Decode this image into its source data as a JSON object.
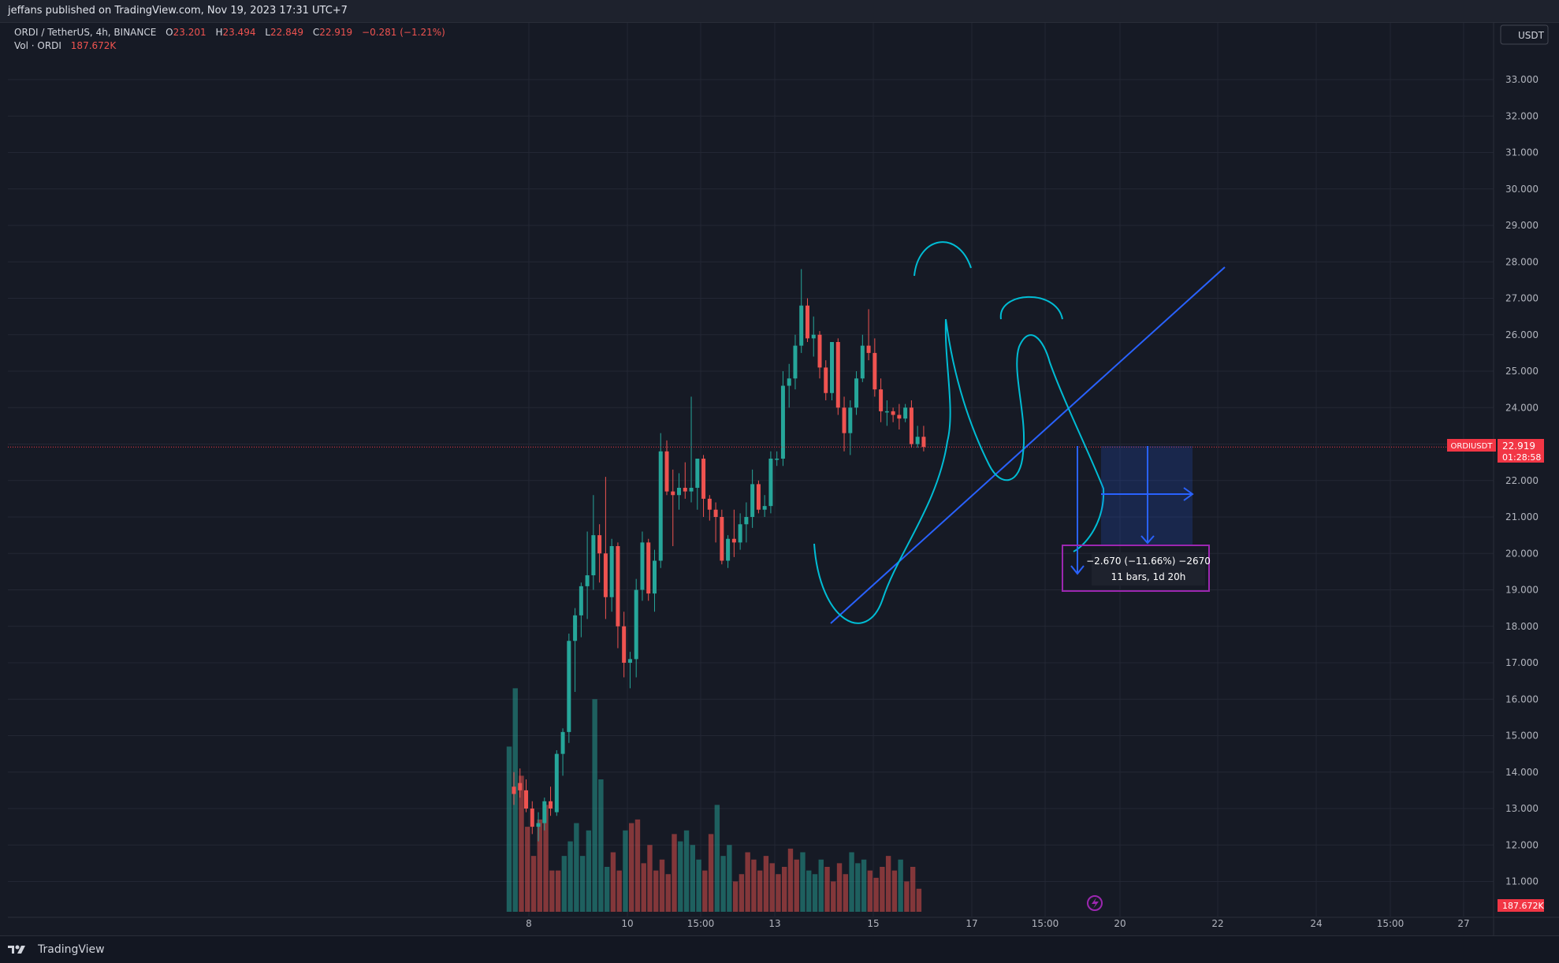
{
  "header": {
    "publish_line": "jeffans published on TradingView.com, Nov 19, 2023 17:31 UTC+7"
  },
  "legend": {
    "symbol": "ORDI / TetherUS, 4h, BINANCE",
    "o_label": "O",
    "o_value": "23.201",
    "h_label": "H",
    "h_value": "23.494",
    "l_label": "L",
    "l_value": "22.849",
    "c_label": "C",
    "c_value": "22.919",
    "change": "−0.281 (−1.21%)",
    "vol_label": "Vol · ORDI",
    "vol_value": "187.672K"
  },
  "currency_button": "USDT",
  "price_tag": {
    "symbol": "ORDIUSDT",
    "price": "22.919",
    "countdown": "01:28:58"
  },
  "volume_tag": "187.672K",
  "measure_box": {
    "line1": "−2.670 (−11.66%) −2670",
    "line2": "11 bars, 1d 20h"
  },
  "footer": {
    "brand": "TradingView"
  },
  "colors": {
    "background": "#161a25",
    "up": "#26a69a",
    "down": "#ef5350",
    "drawing_line": "#2962ff",
    "sketch": "#00bcd4",
    "measure_border": "#9c27b0",
    "price_line": "#f23645"
  },
  "chart_data": {
    "type": "candlestick",
    "symbol": "ORDI / TetherUS",
    "interval": "4h",
    "exchange": "BINANCE",
    "ylim": [
      10.5,
      33.6
    ],
    "y_ticks": [
      "11.000",
      "12.000",
      "13.000",
      "14.000",
      "15.000",
      "16.000",
      "17.000",
      "18.000",
      "19.000",
      "20.000",
      "21.000",
      "22.000",
      "23.000",
      "24.000",
      "25.000",
      "26.000",
      "27.000",
      "28.000",
      "29.000",
      "30.000",
      "31.000",
      "32.000",
      "33.000"
    ],
    "x_ticks": [
      "8",
      "10",
      "15:00",
      "13",
      "15",
      "17",
      "15:00",
      "20",
      "22",
      "24",
      "15:00",
      "27"
    ],
    "last_price": 22.919,
    "candles": [
      [
        13.6,
        14.0,
        13.1,
        13.4
      ],
      [
        13.7,
        14.1,
        13.3,
        13.5
      ],
      [
        13.5,
        13.8,
        12.9,
        13.0
      ],
      [
        13.0,
        13.2,
        12.3,
        12.5
      ],
      [
        12.5,
        12.9,
        12.1,
        12.6
      ],
      [
        12.6,
        13.3,
        12.4,
        13.2
      ],
      [
        13.2,
        13.6,
        12.8,
        13.0
      ],
      [
        12.9,
        14.6,
        12.8,
        14.5
      ],
      [
        14.5,
        15.2,
        13.9,
        15.1
      ],
      [
        15.1,
        17.8,
        14.8,
        17.6
      ],
      [
        17.6,
        18.5,
        16.2,
        18.3
      ],
      [
        18.3,
        19.2,
        17.7,
        19.1
      ],
      [
        19.1,
        20.6,
        18.2,
        19.4
      ],
      [
        19.4,
        21.6,
        19.0,
        20.5
      ],
      [
        20.5,
        20.8,
        19.2,
        20.0
      ],
      [
        20.0,
        22.1,
        18.2,
        18.8
      ],
      [
        18.8,
        20.4,
        18.4,
        20.2
      ],
      [
        20.2,
        20.3,
        17.4,
        18.0
      ],
      [
        18.0,
        18.4,
        16.6,
        17.0
      ],
      [
        17.0,
        17.3,
        16.3,
        17.1
      ],
      [
        17.1,
        19.3,
        16.6,
        19.0
      ],
      [
        19.0,
        20.6,
        18.7,
        20.3
      ],
      [
        20.3,
        20.4,
        18.7,
        18.9
      ],
      [
        18.9,
        20.1,
        18.4,
        19.8
      ],
      [
        19.8,
        23.3,
        19.6,
        22.8
      ],
      [
        22.8,
        23.1,
        21.6,
        21.7
      ],
      [
        21.7,
        22.3,
        20.2,
        21.6
      ],
      [
        21.6,
        22.2,
        21.2,
        21.8
      ],
      [
        21.8,
        22.5,
        21.5,
        21.7
      ],
      [
        21.7,
        24.3,
        21.4,
        21.8
      ],
      [
        21.8,
        22.5,
        21.2,
        22.6
      ],
      [
        22.6,
        22.7,
        21.0,
        21.5
      ],
      [
        21.5,
        21.6,
        20.9,
        21.2
      ],
      [
        21.2,
        21.4,
        20.3,
        21.0
      ],
      [
        21.0,
        21.2,
        19.7,
        19.8
      ],
      [
        19.8,
        20.5,
        19.6,
        20.4
      ],
      [
        20.4,
        21.2,
        19.9,
        20.3
      ],
      [
        20.3,
        21.1,
        20.1,
        20.8
      ],
      [
        20.8,
        21.4,
        20.3,
        21.0
      ],
      [
        21.0,
        22.3,
        20.7,
        21.9
      ],
      [
        21.9,
        22.0,
        21.1,
        21.2
      ],
      [
        21.2,
        21.6,
        21.0,
        21.3
      ],
      [
        21.3,
        22.8,
        21.1,
        22.6
      ],
      [
        22.6,
        22.8,
        22.4,
        22.6
      ],
      [
        22.6,
        25.0,
        22.4,
        24.6
      ],
      [
        24.6,
        25.2,
        24.0,
        24.8
      ],
      [
        24.8,
        26.0,
        24.5,
        25.7
      ],
      [
        25.7,
        27.8,
        25.5,
        26.8
      ],
      [
        26.8,
        27.0,
        25.8,
        25.9
      ],
      [
        25.9,
        26.5,
        25.4,
        26.0
      ],
      [
        26.0,
        26.1,
        24.8,
        25.1
      ],
      [
        25.1,
        25.3,
        24.2,
        24.4
      ],
      [
        24.4,
        25.8,
        24.2,
        25.8
      ],
      [
        25.8,
        25.9,
        23.8,
        24.0
      ],
      [
        24.0,
        24.3,
        22.8,
        23.3
      ],
      [
        23.3,
        24.2,
        22.7,
        24.0
      ],
      [
        24.0,
        25.0,
        23.8,
        24.8
      ],
      [
        24.8,
        26.0,
        24.7,
        25.7
      ],
      [
        25.7,
        26.7,
        25.3,
        25.5
      ],
      [
        25.5,
        25.9,
        24.3,
        24.5
      ],
      [
        24.5,
        24.8,
        23.6,
        23.9
      ],
      [
        23.9,
        24.2,
        23.5,
        23.9
      ],
      [
        23.9,
        24.0,
        23.6,
        23.8
      ],
      [
        23.8,
        24.1,
        23.4,
        23.7
      ],
      [
        23.7,
        24.1,
        23.6,
        24.0
      ],
      [
        24.0,
        24.2,
        22.9,
        23.0
      ],
      [
        23.0,
        23.5,
        22.9,
        23.2
      ],
      [
        23.2,
        23.5,
        22.8,
        22.919
      ]
    ],
    "volume": [
      [
        14.7,
        "up"
      ],
      [
        16.3,
        "up"
      ],
      [
        13.9,
        "down"
      ],
      [
        12.5,
        "down"
      ],
      [
        11.7,
        "down"
      ],
      [
        12.7,
        "down"
      ],
      [
        13.1,
        "down"
      ],
      [
        11.3,
        "down"
      ],
      [
        11.3,
        "down"
      ],
      [
        11.7,
        "up"
      ],
      [
        12.1,
        "up"
      ],
      [
        12.6,
        "up"
      ],
      [
        11.7,
        "up"
      ],
      [
        12.4,
        "up"
      ],
      [
        16.0,
        "up"
      ],
      [
        13.8,
        "up"
      ],
      [
        11.4,
        "up"
      ],
      [
        11.8,
        "down"
      ],
      [
        11.3,
        "down"
      ],
      [
        12.4,
        "up"
      ],
      [
        12.6,
        "down"
      ],
      [
        12.7,
        "down"
      ],
      [
        11.5,
        "down"
      ],
      [
        12.0,
        "down"
      ],
      [
        11.3,
        "down"
      ],
      [
        11.6,
        "down"
      ],
      [
        11.2,
        "down"
      ],
      [
        12.3,
        "down"
      ],
      [
        12.1,
        "up"
      ],
      [
        12.4,
        "up"
      ],
      [
        12.0,
        "up"
      ],
      [
        11.6,
        "up"
      ],
      [
        11.3,
        "down"
      ],
      [
        12.3,
        "down"
      ],
      [
        13.1,
        "up"
      ],
      [
        11.7,
        "up"
      ],
      [
        12.0,
        "up"
      ],
      [
        11.0,
        "down"
      ],
      [
        11.2,
        "down"
      ],
      [
        11.8,
        "down"
      ],
      [
        11.6,
        "down"
      ],
      [
        11.3,
        "down"
      ],
      [
        11.7,
        "down"
      ],
      [
        11.5,
        "down"
      ],
      [
        11.2,
        "down"
      ],
      [
        11.4,
        "down"
      ],
      [
        11.9,
        "down"
      ],
      [
        11.6,
        "down"
      ],
      [
        11.8,
        "up"
      ],
      [
        11.3,
        "up"
      ],
      [
        11.2,
        "up"
      ],
      [
        11.6,
        "up"
      ],
      [
        11.4,
        "down"
      ],
      [
        11.0,
        "down"
      ],
      [
        11.5,
        "down"
      ],
      [
        11.2,
        "down"
      ],
      [
        11.8,
        "up"
      ],
      [
        11.5,
        "up"
      ],
      [
        11.6,
        "up"
      ],
      [
        11.3,
        "down"
      ],
      [
        11.1,
        "down"
      ],
      [
        11.4,
        "down"
      ],
      [
        11.7,
        "down"
      ],
      [
        11.3,
        "down"
      ],
      [
        11.6,
        "up"
      ],
      [
        11.0,
        "down"
      ],
      [
        11.4,
        "down"
      ],
      [
        10.8,
        "down"
      ]
    ]
  }
}
